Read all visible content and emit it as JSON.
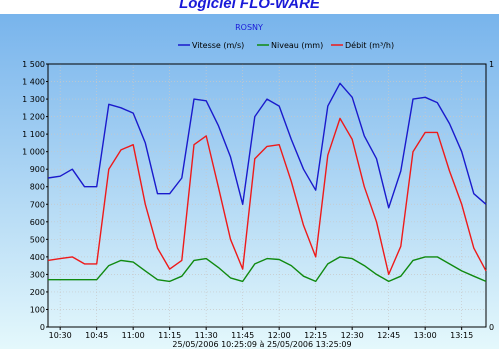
{
  "header": {
    "title": "Logiciel FLO-WARE"
  },
  "chart_data": {
    "type": "line",
    "title": "ROSNY",
    "subtitle": "25/05/2006 10:25:09 à 25/05/2006 13:25:09",
    "x_ticks": [
      "10:30",
      "10:45",
      "11:00",
      "11:15",
      "11:30",
      "11:45",
      "12:00",
      "12:15",
      "12:30",
      "12:45",
      "13:00",
      "13:15"
    ],
    "x_range": [
      "10:25",
      "13:25"
    ],
    "ylim": [
      0,
      1500
    ],
    "y_ticks": [
      "0",
      "100",
      "200",
      "300",
      "400",
      "500",
      "600",
      "700",
      "800",
      "900",
      "1 000",
      "1 100",
      "1 200",
      "1 300",
      "1 400",
      "1 500"
    ],
    "y2_ticks": [
      "0",
      "1"
    ],
    "grid": true,
    "legend_position": "top",
    "colors": {
      "background_top": "#78b4ec",
      "background_bottom": "#e4f8fc",
      "grid": "#c8c8c8"
    },
    "x": [
      "10:25",
      "10:30",
      "10:35",
      "10:40",
      "10:45",
      "10:50",
      "10:55",
      "11:00",
      "11:05",
      "11:10",
      "11:15",
      "11:20",
      "11:25",
      "11:30",
      "11:35",
      "11:40",
      "11:45",
      "11:50",
      "11:55",
      "12:00",
      "12:05",
      "12:10",
      "12:15",
      "12:20",
      "12:25",
      "12:30",
      "12:35",
      "12:40",
      "12:45",
      "12:50",
      "12:55",
      "13:00",
      "13:05",
      "13:10",
      "13:15",
      "13:20",
      "13:25"
    ],
    "series": [
      {
        "name": "Vitesse (m/s)",
        "color": "#1a1acc",
        "values": [
          850,
          860,
          900,
          800,
          800,
          1270,
          1250,
          1220,
          1050,
          760,
          760,
          850,
          1300,
          1290,
          1150,
          970,
          700,
          1200,
          1300,
          1260,
          1070,
          900,
          780,
          1260,
          1390,
          1310,
          1090,
          960,
          680,
          890,
          1300,
          1310,
          1280,
          1160,
          1000,
          760,
          700
        ]
      },
      {
        "name": "Niveau (mm)",
        "color": "#108a10",
        "values": [
          270,
          270,
          270,
          270,
          270,
          350,
          380,
          370,
          320,
          270,
          260,
          290,
          380,
          390,
          340,
          280,
          260,
          360,
          390,
          385,
          350,
          290,
          260,
          360,
          400,
          390,
          350,
          300,
          260,
          290,
          380,
          400,
          400,
          360,
          320,
          290,
          260
        ]
      },
      {
        "name": "Débit (m³/h)",
        "color": "#ee1a1a",
        "values": [
          380,
          390,
          400,
          360,
          360,
          900,
          1010,
          1040,
          700,
          450,
          330,
          380,
          1040,
          1090,
          800,
          500,
          330,
          960,
          1030,
          1040,
          830,
          580,
          400,
          980,
          1190,
          1070,
          800,
          600,
          300,
          460,
          1000,
          1110,
          1110,
          890,
          700,
          450,
          320
        ]
      }
    ]
  }
}
